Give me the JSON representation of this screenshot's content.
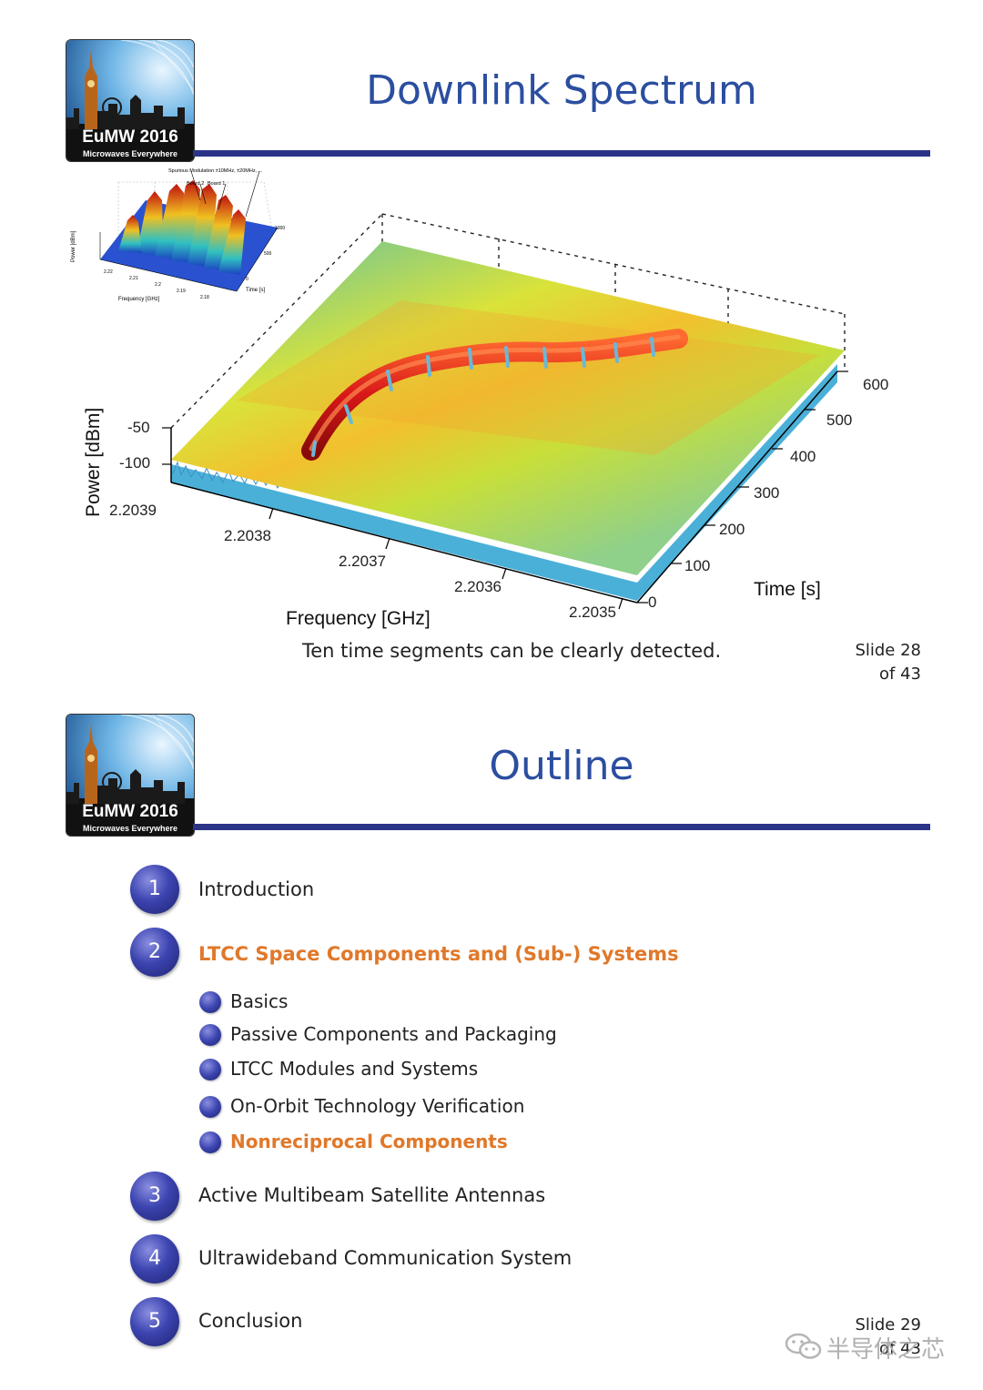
{
  "slides": [
    {
      "title": "Downlink Spectrum",
      "logo": {
        "title": "EuMW 2016",
        "subtitle": "Microwaves Everywhere"
      },
      "caption": "Ten time segments can be clearly detected.",
      "slide_number": "Slide 28",
      "slide_total": "of 43",
      "inset": {
        "annotations": [
          "Spurious Modulation ±10MHz, ±20MHz, ...",
          "Board 2",
          "Board 1"
        ],
        "ylabel": "Power [dBm]",
        "xlabel": "Frequency [GHz]",
        "tlabel": "Time [s]",
        "freq_ticks": [
          "2.22",
          "2.21",
          "2.2",
          "2.19",
          "2.18"
        ],
        "time_ticks": [
          "0",
          "500",
          "1000"
        ]
      }
    },
    {
      "title": "Outline",
      "logo": {
        "title": "EuMW 2016",
        "subtitle": "Microwaves Everywhere"
      },
      "slide_number": "Slide 29",
      "slide_total": "of 43",
      "items": [
        {
          "number": "1",
          "label": "Introduction"
        },
        {
          "number": "2",
          "label": "LTCC Space Components and (Sub-) Systems"
        },
        {
          "number": "3",
          "label": "Active Multibeam Satellite Antennas"
        },
        {
          "number": "4",
          "label": "Ultrawideband Communication System"
        },
        {
          "number": "5",
          "label": "Conclusion"
        }
      ],
      "subitems": [
        {
          "label": "Basics"
        },
        {
          "label": "Passive Components and Packaging"
        },
        {
          "label": "LTCC Modules and Systems"
        },
        {
          "label": "On-Orbit Technology Verification"
        },
        {
          "label": "Nonreciprocal Components"
        }
      ]
    }
  ],
  "chart_data": {
    "type": "surface3d",
    "title": "Downlink Spectrum",
    "xlabel": "Frequency [GHz]",
    "ylabel": "Time [s]",
    "zlabel": "Power [dBm]",
    "frequency_ticks": [
      "2.2039",
      "2.2038",
      "2.2037",
      "2.2036",
      "2.2035"
    ],
    "time_ticks": [
      "0",
      "100",
      "200",
      "300",
      "400",
      "500",
      "600"
    ],
    "power_ticks": [
      "-50",
      "-100"
    ],
    "xlim": [
      2.2035,
      2.2039
    ],
    "ylim": [
      0,
      600
    ],
    "signal_segments": 10
  },
  "watermark": "半导体之芯",
  "colors": {
    "accent": "#2b3486",
    "title": "#2b4ea0",
    "highlight": "#e0782a"
  }
}
